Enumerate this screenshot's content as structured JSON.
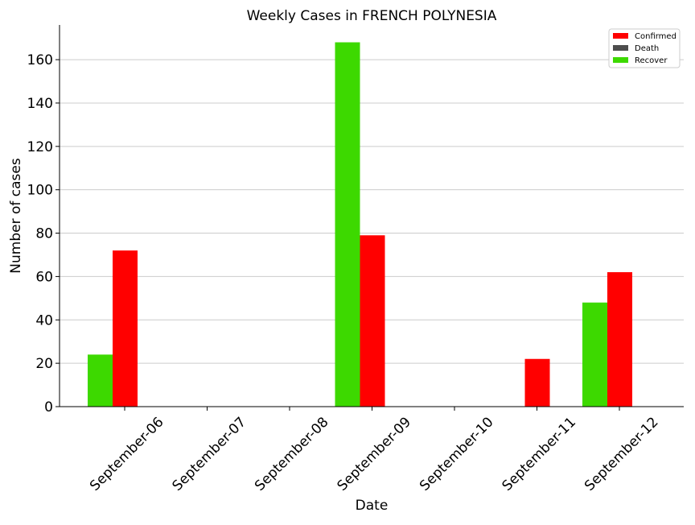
{
  "chart_data": {
    "type": "bar",
    "title": "Weekly Cases in FRENCH POLYNESIA",
    "xlabel": "Date",
    "ylabel": "Number of cases",
    "categories": [
      "September-06",
      "September-07",
      "September-08",
      "September-09",
      "September-10",
      "September-11",
      "September-12"
    ],
    "series": [
      {
        "name": "Confirmed",
        "color": "#ff0000",
        "values": [
          72,
          0,
          0,
          79,
          0,
          22,
          62
        ]
      },
      {
        "name": "Death",
        "color": "#4d4d4d",
        "values": [
          0,
          0,
          0,
          0,
          0,
          0,
          0
        ]
      },
      {
        "name": "Recover",
        "color": "#3dd900",
        "values": [
          24,
          0,
          0,
          168,
          0,
          0,
          48
        ]
      }
    ],
    "ylim": [
      0,
      176
    ],
    "yticks": [
      0,
      20,
      40,
      60,
      80,
      100,
      120,
      140,
      160
    ],
    "grid": "horizontal",
    "legend_position": "top-right"
  }
}
